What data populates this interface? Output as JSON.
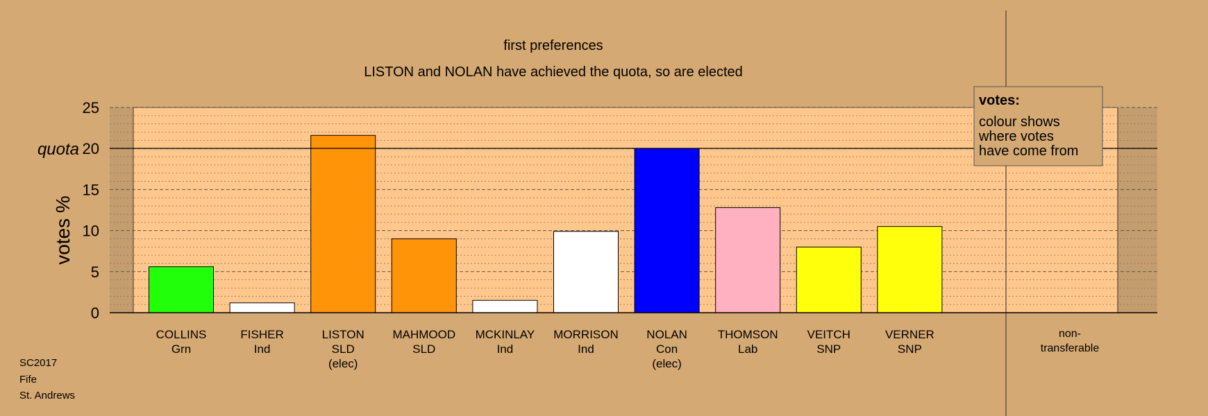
{
  "chart_data": {
    "type": "bar",
    "title": "first preferences",
    "subtitle": "LISTON and NOLAN have achieved the quota, so are elected",
    "ylabel": "votes %",
    "quota_label": "quota",
    "quota": 20,
    "ylim": [
      0,
      25
    ],
    "yticks": [
      0,
      5,
      10,
      15,
      20,
      25
    ],
    "grid": true,
    "categories": [
      {
        "name": "COLLINS",
        "party": "Grn",
        "status": ""
      },
      {
        "name": "FISHER",
        "party": "Ind",
        "status": ""
      },
      {
        "name": "LISTON",
        "party": "SLD",
        "status": "(elec)"
      },
      {
        "name": "MAHMOOD",
        "party": "SLD",
        "status": ""
      },
      {
        "name": "MCKINLAY",
        "party": "Ind",
        "status": ""
      },
      {
        "name": "MORRISON",
        "party": "Ind",
        "status": ""
      },
      {
        "name": "NOLAN",
        "party": "Con",
        "status": "(elec)"
      },
      {
        "name": "THOMSON",
        "party": "Lab",
        "status": ""
      },
      {
        "name": "VEITCH",
        "party": "SNP",
        "status": ""
      },
      {
        "name": "VERNER",
        "party": "SNP",
        "status": ""
      }
    ],
    "values": [
      5.6,
      1.2,
      21.6,
      9.0,
      1.5,
      9.9,
      20.0,
      12.8,
      8.0,
      10.5
    ],
    "colors": [
      "#22ff0a",
      "#ffffff",
      "#ff9409",
      "#ff9409",
      "#ffffff",
      "#ffffff",
      "#0000ff",
      "#ffb1c2",
      "#ffff0c",
      "#ffff0c"
    ],
    "nontransferable": {
      "label_line1": "non-",
      "label_line2": "transferable",
      "value": 0
    },
    "legend": {
      "placement": "top-right",
      "title": "votes:",
      "lines": [
        "colour shows",
        "where votes",
        "have come from"
      ]
    }
  },
  "footer": {
    "line1": "SC2017",
    "line2": "Fife",
    "line3": "St. Andrews"
  },
  "colors": {
    "background": "#d5a973",
    "plot_area": "#ffc78c",
    "outside_shade": "#c49d6f"
  }
}
